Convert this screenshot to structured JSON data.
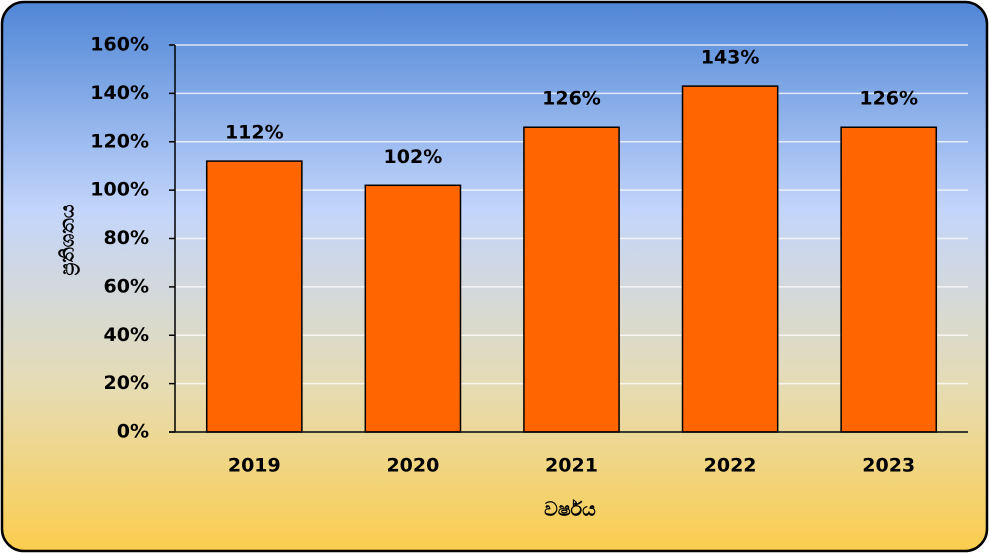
{
  "chart_data": {
    "type": "bar",
    "categories": [
      "2019",
      "2020",
      "2021",
      "2022",
      "2023"
    ],
    "values": [
      112,
      102,
      126,
      143,
      126
    ],
    "value_labels": [
      "112%",
      "102%",
      "126%",
      "143%",
      "126%"
    ],
    "color": "#ff6600",
    "x_label": "වර්ෂය",
    "y_label": "ප්‍රතිශතය",
    "ylim": [
      0,
      160
    ],
    "yticks": [
      {
        "value": 0,
        "label": "0%"
      },
      {
        "value": 20,
        "label": "20%"
      },
      {
        "value": 40,
        "label": "40%"
      },
      {
        "value": 60,
        "label": "60%"
      },
      {
        "value": 80,
        "label": "80%"
      },
      {
        "value": 100,
        "label": "100%"
      },
      {
        "value": 120,
        "label": "120%"
      },
      {
        "value": 140,
        "label": "140%"
      },
      {
        "value": 160,
        "label": "160%"
      }
    ],
    "grid": true
  }
}
